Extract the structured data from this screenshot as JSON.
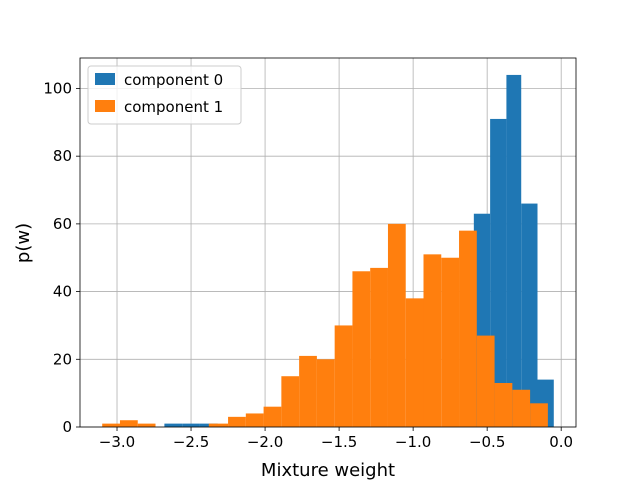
{
  "chart_data": {
    "type": "bar",
    "title": "",
    "xlabel": "Mixture weight",
    "ylabel": "p(w)",
    "xlim": [
      -3.25,
      0.1
    ],
    "ylim": [
      0,
      109
    ],
    "grid": true,
    "legend_position": "top-left",
    "xticks": [
      -3.0,
      -2.5,
      -2.0,
      -1.5,
      -1.0,
      -0.5,
      0.0
    ],
    "xtick_labels": [
      "−3.0",
      "−2.5",
      "−2.0",
      "−1.5",
      "−1.0",
      "−0.5",
      "0.0"
    ],
    "yticks": [
      0,
      20,
      40,
      60,
      80,
      100
    ],
    "ytick_labels": [
      "0",
      "20",
      "40",
      "60",
      "80",
      "100"
    ],
    "series": [
      {
        "name": "component 0",
        "color": "#1f77b4",
        "bins": [
          {
            "x0": -2.68,
            "x1": -2.56,
            "y": 1
          },
          {
            "x0": -2.56,
            "x1": -2.44,
            "y": 1
          },
          {
            "x0": -2.44,
            "x1": -2.32,
            "y": 1
          },
          {
            "x0": -0.59,
            "x1": -0.48,
            "y": 63
          },
          {
            "x0": -0.48,
            "x1": -0.37,
            "y": 91
          },
          {
            "x0": -0.37,
            "x1": -0.27,
            "y": 104
          },
          {
            "x0": -0.27,
            "x1": -0.16,
            "y": 66
          },
          {
            "x0": -0.16,
            "x1": -0.05,
            "y": 14
          }
        ]
      },
      {
        "name": "component 1",
        "color": "#ff7f0e",
        "bins": [
          {
            "x0": -3.1,
            "x1": -2.98,
            "y": 1
          },
          {
            "x0": -2.98,
            "x1": -2.86,
            "y": 2
          },
          {
            "x0": -2.86,
            "x1": -2.74,
            "y": 1
          },
          {
            "x0": -2.74,
            "x1": -2.62,
            "y": 0
          },
          {
            "x0": -2.62,
            "x1": -2.5,
            "y": 0
          },
          {
            "x0": -2.5,
            "x1": -2.38,
            "y": 0
          },
          {
            "x0": -2.38,
            "x1": -2.25,
            "y": 1
          },
          {
            "x0": -2.25,
            "x1": -2.13,
            "y": 3
          },
          {
            "x0": -2.13,
            "x1": -2.01,
            "y": 4
          },
          {
            "x0": -2.01,
            "x1": -1.89,
            "y": 6
          },
          {
            "x0": -1.89,
            "x1": -1.77,
            "y": 15
          },
          {
            "x0": -1.77,
            "x1": -1.65,
            "y": 21
          },
          {
            "x0": -1.65,
            "x1": -1.53,
            "y": 20
          },
          {
            "x0": -1.53,
            "x1": -1.41,
            "y": 30
          },
          {
            "x0": -1.41,
            "x1": -1.29,
            "y": 46
          },
          {
            "x0": -1.29,
            "x1": -1.17,
            "y": 47
          },
          {
            "x0": -1.17,
            "x1": -1.05,
            "y": 60
          },
          {
            "x0": -1.05,
            "x1": -0.93,
            "y": 38
          },
          {
            "x0": -0.93,
            "x1": -0.81,
            "y": 51
          },
          {
            "x0": -0.81,
            "x1": -0.69,
            "y": 50
          },
          {
            "x0": -0.69,
            "x1": -0.57,
            "y": 58
          },
          {
            "x0": -0.57,
            "x1": -0.45,
            "y": 27
          },
          {
            "x0": -0.45,
            "x1": -0.33,
            "y": 13
          },
          {
            "x0": -0.33,
            "x1": -0.21,
            "y": 11
          },
          {
            "x0": -0.21,
            "x1": -0.09,
            "y": 7
          }
        ]
      }
    ]
  }
}
